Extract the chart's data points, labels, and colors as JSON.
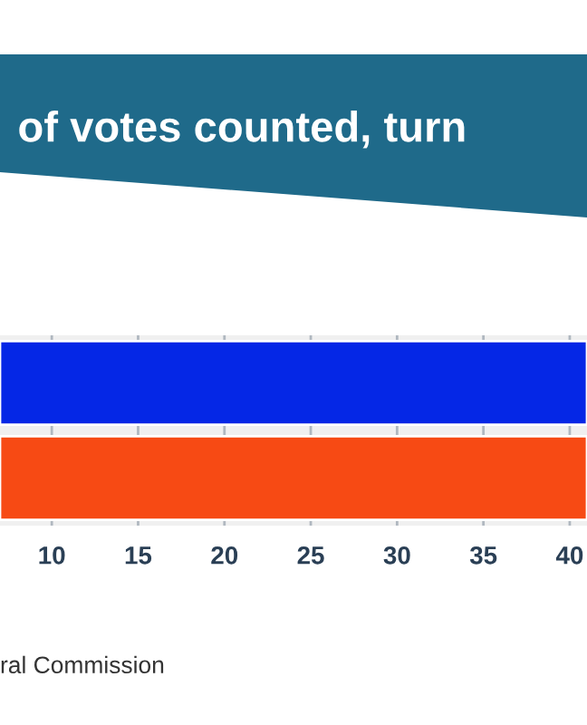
{
  "chart_data": {
    "type": "bar",
    "orientation": "horizontal",
    "title": "of votes counted, turn",
    "categories": [
      null,
      null
    ],
    "values": [
      41,
      41
    ],
    "colors": [
      "#0527e6",
      "#f74a14"
    ],
    "xlim": [
      7,
      41
    ],
    "xticks": [
      10,
      15,
      20,
      25,
      30,
      35,
      40
    ],
    "grid": "x",
    "tick_labels": "x",
    "annotations": [
      "ral Commission"
    ]
  }
}
